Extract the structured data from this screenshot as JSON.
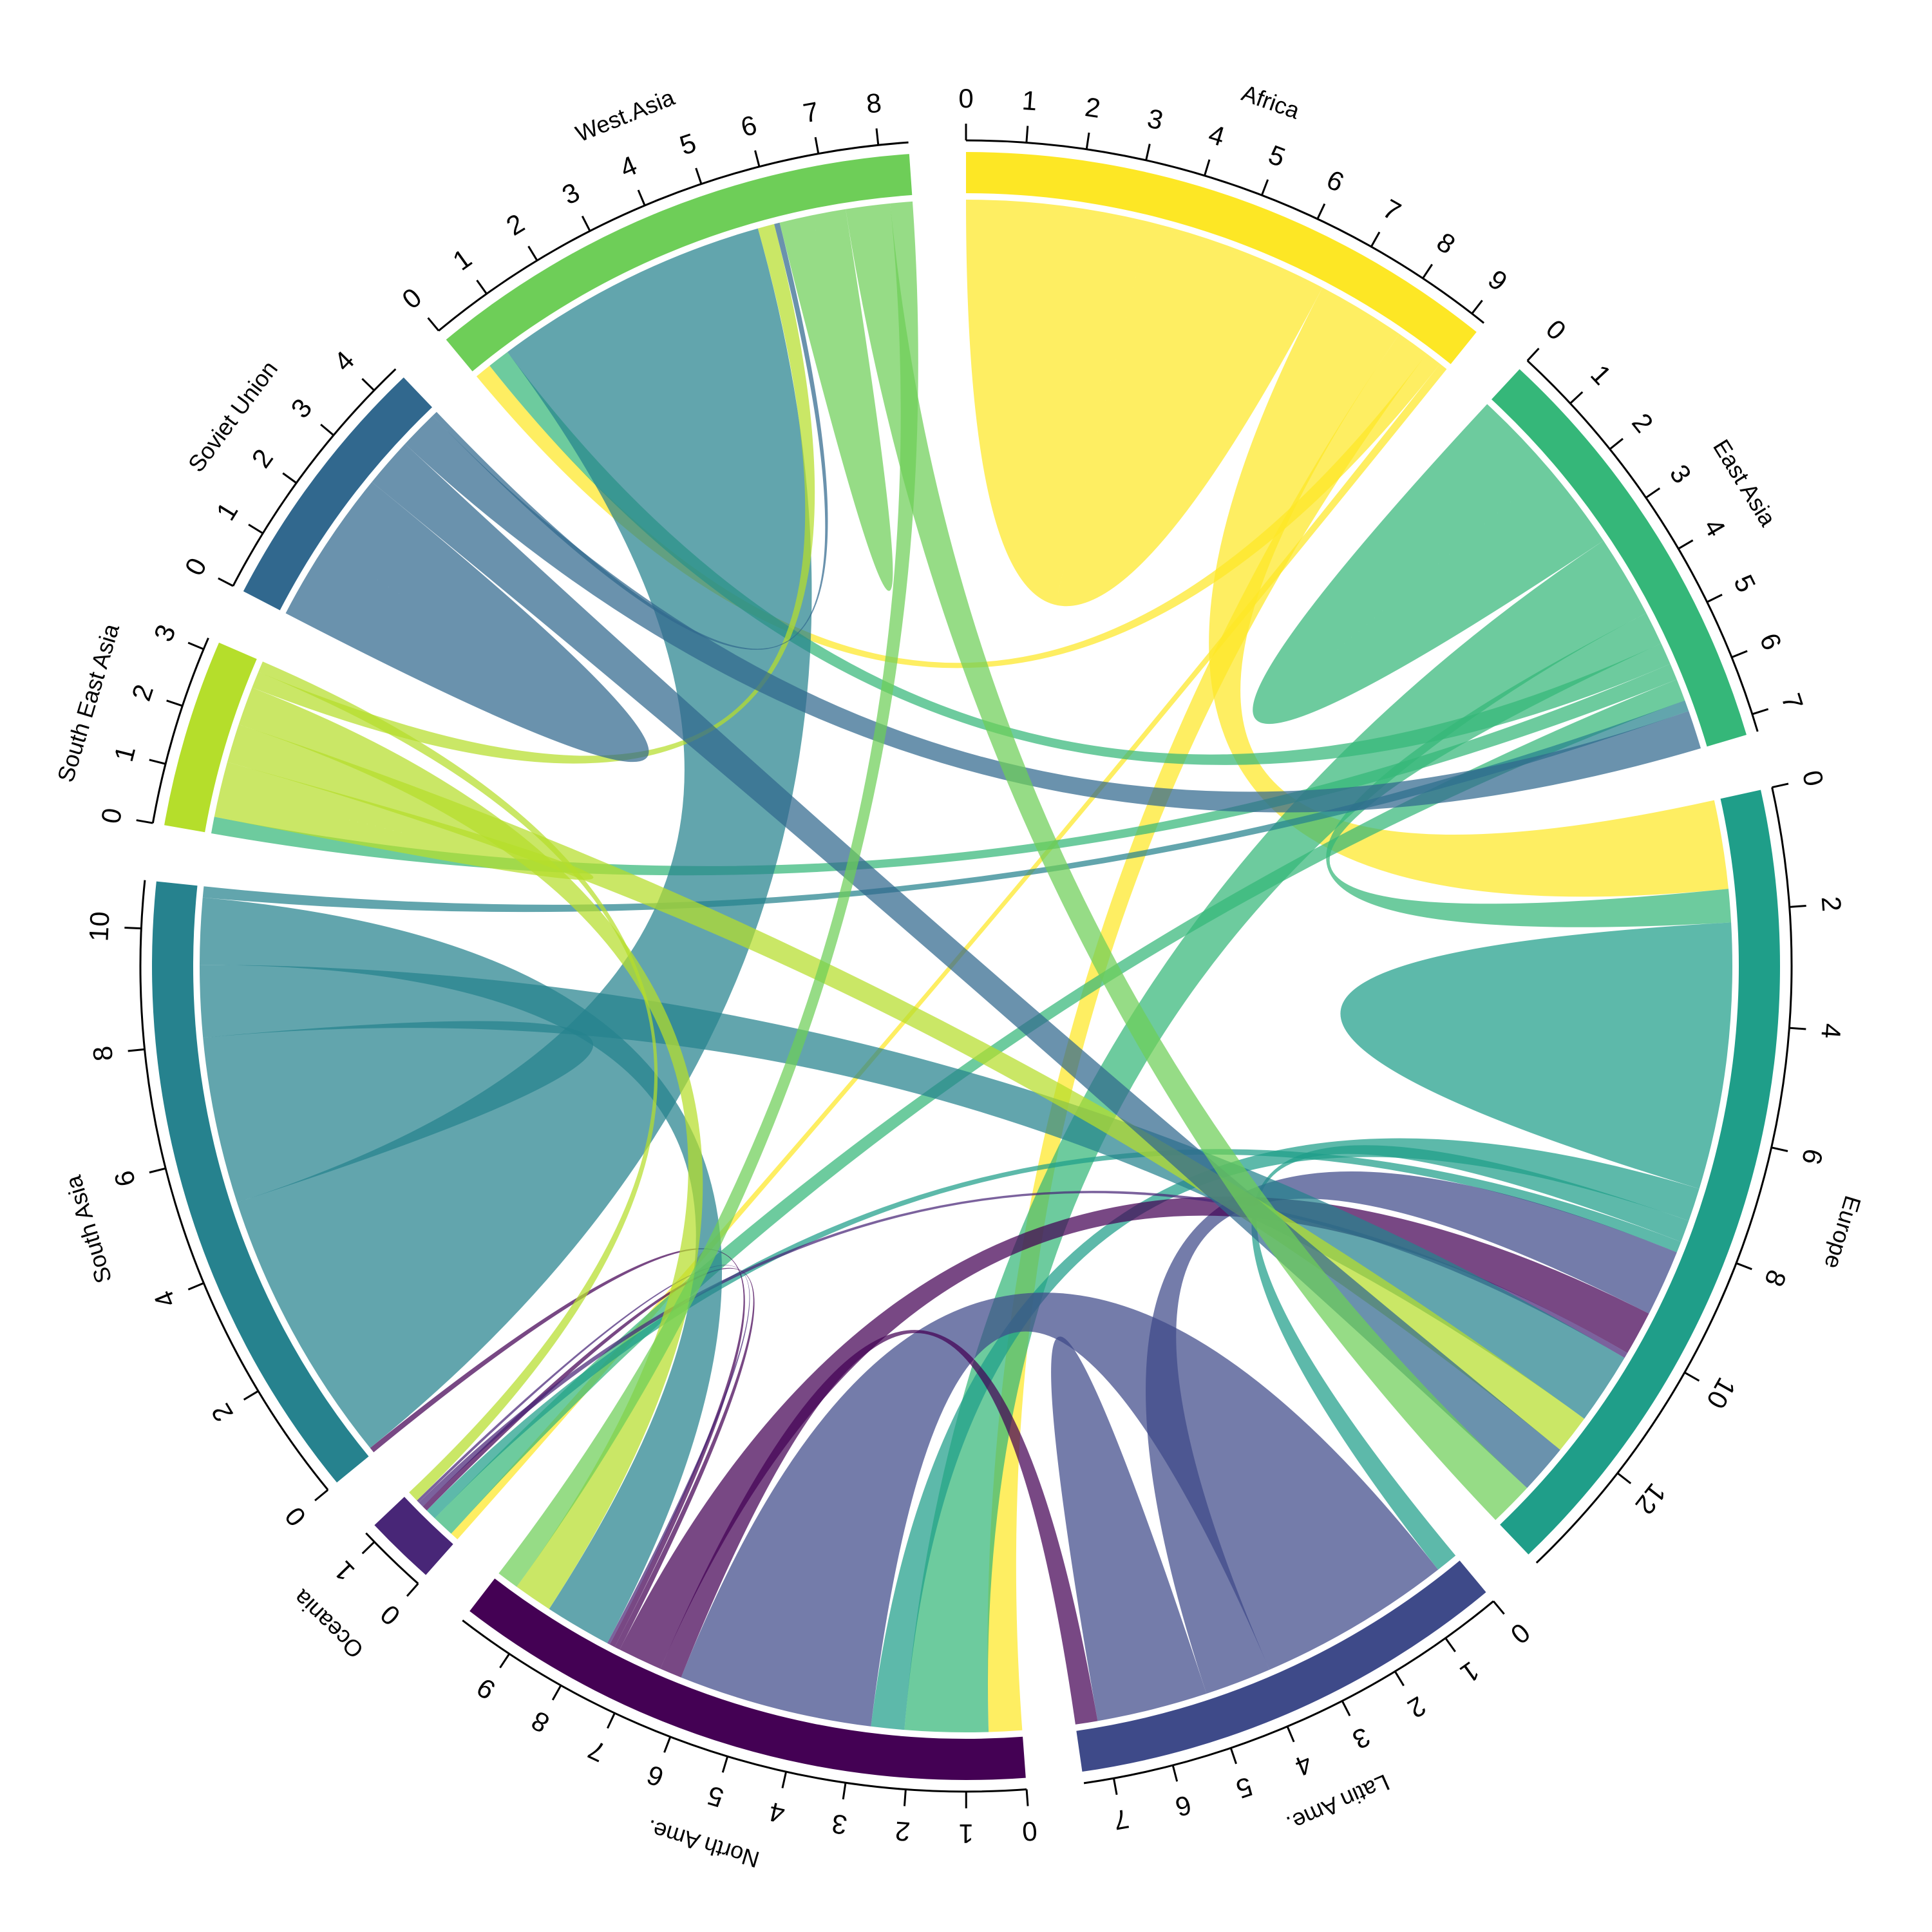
{
  "chart_data": {
    "type": "chord",
    "sectors": [
      {
        "name": "Africa",
        "color": "#fde725",
        "ticks": [
          0,
          1,
          2,
          3,
          4,
          5,
          6,
          7,
          8,
          9
        ]
      },
      {
        "name": "East Asia",
        "color": "#35b779",
        "ticks": [
          0,
          1,
          2,
          3,
          4,
          5,
          6,
          7
        ]
      },
      {
        "name": "Europe",
        "color": "#1f9e89",
        "ticks": [
          0,
          2,
          4,
          6,
          8,
          10,
          12
        ]
      },
      {
        "name": "Latin Ame.",
        "color": "#3e4a89",
        "ticks": [
          0,
          1,
          2,
          3,
          4,
          5,
          6,
          7
        ]
      },
      {
        "name": "North Ame.",
        "color": "#440154",
        "ticks": [
          0,
          1,
          2,
          3,
          4,
          5,
          6,
          7,
          8,
          9
        ]
      },
      {
        "name": "Oceania",
        "color": "#482677",
        "ticks": [
          0,
          1
        ]
      },
      {
        "name": "South Asia",
        "color": "#26828e",
        "ticks": [
          0,
          2,
          4,
          6,
          8,
          10
        ]
      },
      {
        "name": "South East Asia",
        "color": "#b5de2b",
        "ticks": [
          0,
          1,
          2,
          3
        ]
      },
      {
        "name": "Soviet Union",
        "color": "#31688e",
        "ticks": [
          0,
          1,
          2,
          3,
          4
        ]
      },
      {
        "name": "West.Asia",
        "color": "#6ece58",
        "ticks": [
          0,
          1,
          2,
          3,
          4,
          5,
          6,
          7,
          8
        ]
      }
    ],
    "flows": [
      {
        "from": "Africa",
        "to": "Africa",
        "value": 3.3
      },
      {
        "from": "Africa",
        "to": "Europe",
        "value": 1.6
      },
      {
        "from": "Africa",
        "to": "North Ame.",
        "value": 0.6
      },
      {
        "from": "Africa",
        "to": "West.Asia",
        "value": 0.3
      },
      {
        "from": "Africa",
        "to": "Oceania",
        "value": 0.15
      },
      {
        "from": "East Asia",
        "to": "East Asia",
        "value": 1.6
      },
      {
        "from": "East Asia",
        "to": "North Ame.",
        "value": 1.5
      },
      {
        "from": "East Asia",
        "to": "Europe",
        "value": 0.6
      },
      {
        "from": "East Asia",
        "to": "West.Asia",
        "value": 0.4
      },
      {
        "from": "East Asia",
        "to": "South East Asia",
        "value": 0.3
      },
      {
        "from": "East Asia",
        "to": "Oceania",
        "value": 0.4
      },
      {
        "from": "Europe",
        "to": "Europe",
        "value": 2.4
      },
      {
        "from": "Europe",
        "to": "North Ame.",
        "value": 0.6
      },
      {
        "from": "Europe",
        "to": "Latin Ame.",
        "value": 0.4
      },
      {
        "from": "Europe",
        "to": "Oceania",
        "value": 0.2
      },
      {
        "from": "Latin Ame.",
        "to": "North Ame.",
        "value": 3.5
      },
      {
        "from": "Latin Ame.",
        "to": "Europe",
        "value": 1.2
      },
      {
        "from": "Latin Ame.",
        "to": "Latin Ame.",
        "value": 1.0
      },
      {
        "from": "North Ame.",
        "to": "Latin Ame.",
        "value": 0.4
      },
      {
        "from": "North Ame.",
        "to": "Europe",
        "value": 0.8
      },
      {
        "from": "North Ame.",
        "to": "Oceania",
        "value": 0.1
      },
      {
        "from": "North Ame.",
        "to": "South Asia",
        "value": 0.1
      },
      {
        "from": "Oceania",
        "to": "Europe",
        "value": 0.1
      },
      {
        "from": "Oceania",
        "to": "North Ame.",
        "value": 0.05
      },
      {
        "from": "South Asia",
        "to": "West.Asia",
        "value": 5.0
      },
      {
        "from": "South Asia",
        "to": "South Asia",
        "value": 1.5
      },
      {
        "from": "South Asia",
        "to": "Europe",
        "value": 1.3
      },
      {
        "from": "South Asia",
        "to": "North Ame.",
        "value": 1.2
      },
      {
        "from": "South Asia",
        "to": "East Asia",
        "value": 0.2
      },
      {
        "from": "South East Asia",
        "to": "South East Asia",
        "value": 0.5
      },
      {
        "from": "South East Asia",
        "to": "Europe",
        "value": 0.7
      },
      {
        "from": "South East Asia",
        "to": "North Ame.",
        "value": 0.7
      },
      {
        "from": "South East Asia",
        "to": "West.Asia",
        "value": 0.3
      },
      {
        "from": "South East Asia",
        "to": "Oceania",
        "value": 0.2
      },
      {
        "from": "Soviet Union",
        "to": "Soviet Union",
        "value": 1.4
      },
      {
        "from": "Soviet Union",
        "to": "Europe",
        "value": 0.9
      },
      {
        "from": "Soviet Union",
        "to": "East Asia",
        "value": 0.7
      },
      {
        "from": "Soviet Union",
        "to": "West.Asia",
        "value": 0.1
      },
      {
        "from": "West.Asia",
        "to": "West.Asia",
        "value": 0.6
      },
      {
        "from": "West.Asia",
        "to": "Europe",
        "value": 0.8
      },
      {
        "from": "West.Asia",
        "to": "North Ame.",
        "value": 0.4
      }
    ]
  }
}
